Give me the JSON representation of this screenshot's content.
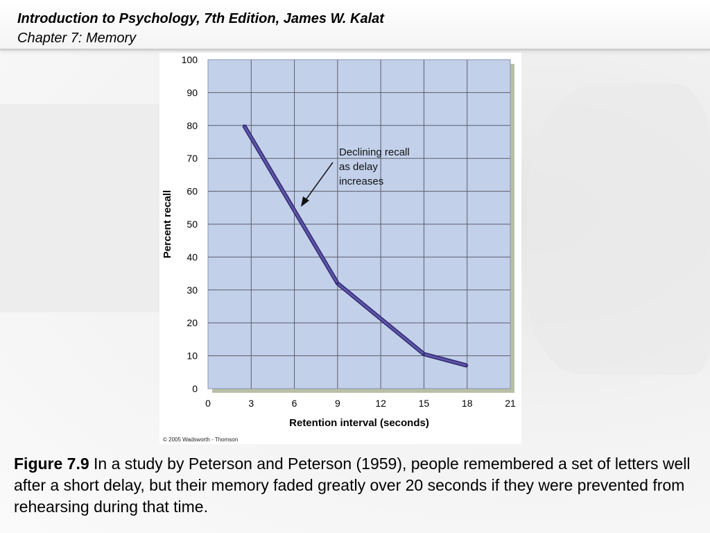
{
  "header": {
    "title": "Introduction to Psychology, 7th Edition, James W. Kalat",
    "subtitle": "Chapter 7: Memory"
  },
  "figure": {
    "copyright": "© 2005 Wadsworth - Thomson",
    "annotation_lines": [
      "Declining recall",
      "as delay",
      "increases"
    ]
  },
  "caption": {
    "label": "Figure 7.9",
    "text": "In a study by Peterson and Peterson (1959), people remembered a set of letters well after a short delay, but their memory faded greatly over 20 seconds if they were prevented from rehearsing during that time."
  },
  "chart_data": {
    "type": "line",
    "xlabel": "Retention interval (seconds)",
    "ylabel": "Percent recall",
    "xlim": [
      0,
      21
    ],
    "ylim": [
      0,
      100
    ],
    "x_ticks": [
      0,
      3,
      6,
      9,
      12,
      15,
      18,
      21
    ],
    "y_ticks": [
      0,
      10,
      20,
      30,
      40,
      50,
      60,
      70,
      80,
      90,
      100
    ],
    "grid": true,
    "series": [
      {
        "x": [
          2.5,
          9,
          15,
          18
        ],
        "y": [
          80,
          32,
          10.5,
          7
        ]
      }
    ],
    "colors": {
      "plot_background": "#c2d0ea",
      "line": "#5f55a8",
      "line_edge": "#2f2a6e",
      "grid": "#5c5c6a"
    }
  }
}
